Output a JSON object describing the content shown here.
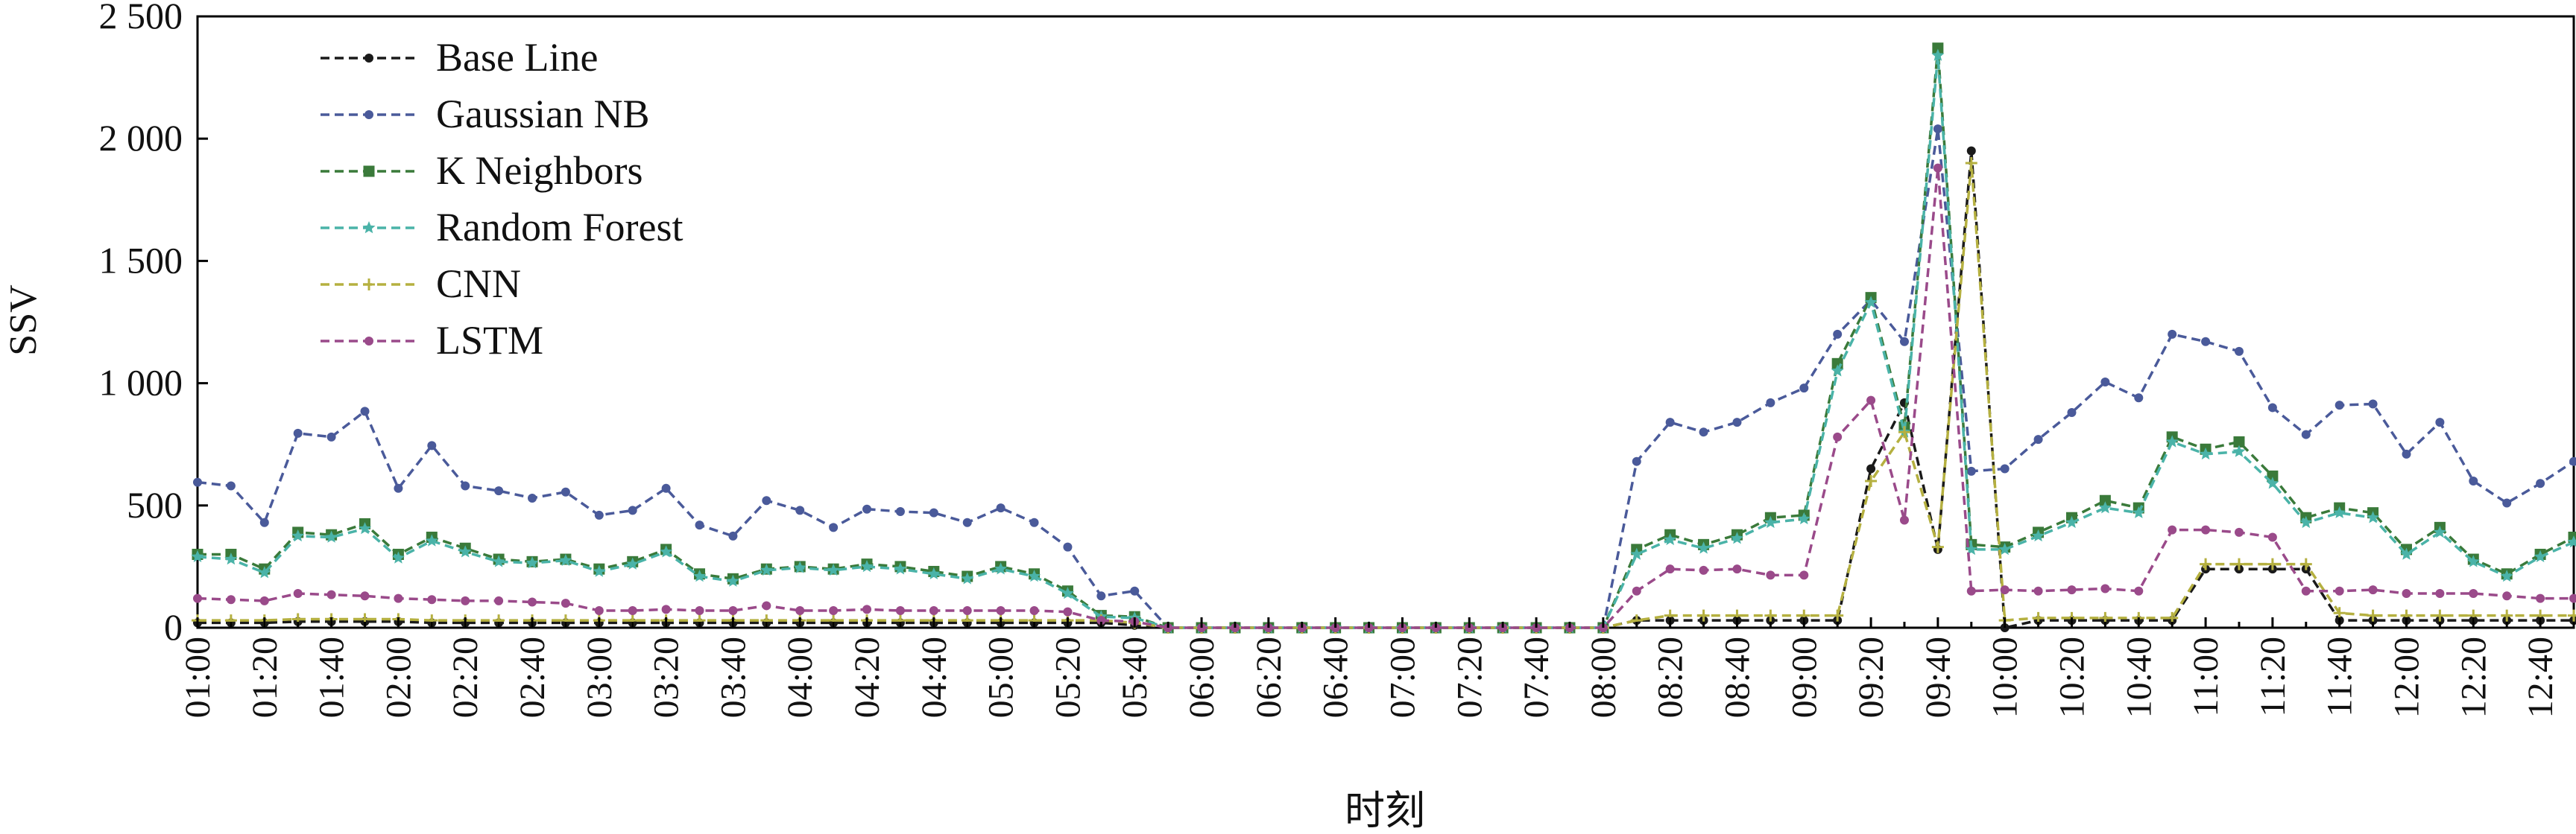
{
  "chart_data": {
    "type": "line",
    "title": "",
    "xlabel": "时刻",
    "ylabel": "SSV",
    "ylim": [
      0,
      2500
    ],
    "yticks": [
      0,
      500,
      1000,
      1500,
      2000,
      2500
    ],
    "ytick_labels": [
      "0",
      "500",
      "1 000",
      "1 500",
      "2 000",
      "2 500"
    ],
    "legend_position": "top-left",
    "grid": false,
    "x": [
      "01:00",
      "01:10",
      "01:20",
      "01:30",
      "01:40",
      "01:50",
      "02:00",
      "02:10",
      "02:20",
      "02:30",
      "02:40",
      "02:50",
      "03:00",
      "03:10",
      "03:20",
      "03:30",
      "03:40",
      "03:50",
      "04:00",
      "04:10",
      "04:20",
      "04:30",
      "04:40",
      "04:50",
      "05:00",
      "05:10",
      "05:20",
      "05:30",
      "05:40",
      "05:50",
      "06:00",
      "06:10",
      "06:20",
      "06:30",
      "06:40",
      "06:50",
      "07:00",
      "07:10",
      "07:20",
      "07:30",
      "07:40",
      "07:50",
      "08:00",
      "08:10",
      "08:20",
      "08:30",
      "08:40",
      "08:50",
      "09:00",
      "09:10",
      "09:20",
      "09:30",
      "09:40",
      "09:50",
      "10:00",
      "10:10",
      "10:20",
      "10:30",
      "10:40",
      "10:50",
      "11:00",
      "11:10",
      "11:20",
      "11:30",
      "11:40",
      "11:50",
      "12:00",
      "12:10",
      "12:20",
      "12:30",
      "12:40",
      "12:50"
    ],
    "xtick_labels": [
      "01:00",
      "01:20",
      "01:40",
      "02:00",
      "02:20",
      "02:40",
      "03:00",
      "03:20",
      "03:40",
      "04:00",
      "04:20",
      "04:40",
      "05:00",
      "05:20",
      "05:40",
      "06:00",
      "06:20",
      "06:40",
      "07:00",
      "07:20",
      "07:40",
      "08:00",
      "08:20",
      "08:40",
      "09:00",
      "09:20",
      "09:40",
      "10:00",
      "10:20",
      "10:40",
      "11:00",
      "11:20",
      "11:40",
      "12:00",
      "12:20",
      "12:40"
    ],
    "series": [
      {
        "name": "Base Line",
        "color": "#1a1a1a",
        "marker": "circle",
        "values": [
          20,
          20,
          20,
          25,
          25,
          25,
          25,
          20,
          20,
          20,
          20,
          20,
          20,
          20,
          20,
          20,
          20,
          20,
          20,
          20,
          20,
          20,
          20,
          20,
          20,
          20,
          20,
          20,
          10,
          0,
          0,
          0,
          0,
          0,
          0,
          0,
          0,
          0,
          0,
          0,
          0,
          0,
          0,
          30,
          30,
          30,
          30,
          30,
          30,
          30,
          650,
          920,
          320,
          1950,
          0,
          30,
          30,
          30,
          30,
          30,
          240,
          240,
          240,
          240,
          30,
          30,
          30,
          30,
          30,
          30,
          30,
          30
        ]
      },
      {
        "name": "Gaussian NB",
        "color": "#4a5a9a",
        "marker": "circle",
        "values": [
          595,
          580,
          430,
          795,
          780,
          885,
          570,
          745,
          580,
          560,
          530,
          555,
          460,
          480,
          570,
          420,
          375,
          520,
          480,
          410,
          485,
          475,
          470,
          430,
          490,
          430,
          330,
          130,
          150,
          0,
          0,
          0,
          0,
          0,
          0,
          0,
          0,
          0,
          0,
          0,
          0,
          0,
          0,
          680,
          840,
          800,
          840,
          920,
          980,
          1200,
          1340,
          1170,
          2040,
          640,
          650,
          770,
          880,
          1005,
          940,
          1200,
          1170,
          1130,
          900,
          790,
          910,
          915,
          710,
          840,
          600,
          510,
          590,
          680
        ]
      },
      {
        "name": "K Neighbors",
        "color": "#3a7a3a",
        "marker": "square",
        "values": [
          300,
          300,
          240,
          390,
          380,
          425,
          300,
          370,
          325,
          280,
          270,
          280,
          240,
          270,
          320,
          220,
          200,
          240,
          250,
          240,
          260,
          250,
          230,
          210,
          250,
          220,
          150,
          50,
          45,
          0,
          0,
          0,
          0,
          0,
          0,
          0,
          0,
          0,
          0,
          0,
          0,
          0,
          0,
          320,
          380,
          340,
          380,
          450,
          460,
          1080,
          1350,
          820,
          2370,
          340,
          330,
          390,
          450,
          520,
          490,
          780,
          730,
          760,
          620,
          450,
          490,
          470,
          320,
          410,
          280,
          220,
          300,
          370
        ]
      },
      {
        "name": "Random Forest",
        "color": "#4ab3a8",
        "marker": "star",
        "values": [
          290,
          280,
          225,
          375,
          370,
          405,
          285,
          355,
          310,
          270,
          265,
          275,
          230,
          260,
          310,
          210,
          190,
          235,
          245,
          235,
          250,
          240,
          220,
          200,
          240,
          210,
          140,
          45,
          40,
          0,
          0,
          0,
          0,
          0,
          0,
          0,
          0,
          0,
          0,
          0,
          0,
          0,
          0,
          300,
          360,
          325,
          365,
          430,
          445,
          1050,
          1330,
          800,
          2340,
          320,
          320,
          375,
          430,
          490,
          470,
          760,
          710,
          720,
          590,
          430,
          470,
          450,
          300,
          390,
          270,
          210,
          290,
          350
        ]
      },
      {
        "name": "CNN",
        "color": "#b5b040",
        "marker": "plus",
        "values": [
          30,
          30,
          30,
          35,
          35,
          35,
          35,
          30,
          30,
          30,
          30,
          30,
          30,
          30,
          30,
          30,
          30,
          30,
          30,
          30,
          30,
          30,
          30,
          30,
          30,
          30,
          30,
          30,
          20,
          0,
          0,
          0,
          0,
          0,
          0,
          0,
          0,
          0,
          0,
          0,
          0,
          0,
          0,
          30,
          50,
          50,
          50,
          50,
          50,
          50,
          600,
          800,
          330,
          1900,
          30,
          40,
          40,
          40,
          40,
          40,
          260,
          260,
          260,
          260,
          60,
          50,
          50,
          50,
          50,
          50,
          50,
          50
        ]
      },
      {
        "name": "LSTM",
        "color": "#9a4a8a",
        "marker": "circle",
        "values": [
          120,
          115,
          110,
          140,
          135,
          130,
          120,
          115,
          110,
          110,
          105,
          100,
          70,
          70,
          75,
          70,
          70,
          90,
          70,
          70,
          75,
          70,
          70,
          70,
          70,
          70,
          65,
          30,
          25,
          0,
          0,
          0,
          0,
          0,
          0,
          0,
          0,
          0,
          0,
          0,
          0,
          0,
          0,
          150,
          240,
          235,
          240,
          215,
          215,
          780,
          930,
          440,
          1880,
          150,
          155,
          150,
          155,
          160,
          150,
          400,
          400,
          390,
          370,
          150,
          150,
          155,
          140,
          140,
          140,
          130,
          120,
          120
        ]
      }
    ]
  }
}
